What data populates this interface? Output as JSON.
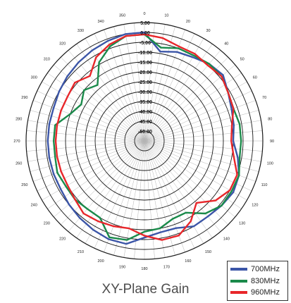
{
  "chart_data": {
    "type": "polar-line",
    "title": "XY-Plane Gain",
    "angle_ticks": [
      "0",
      "10",
      "20",
      "30",
      "40",
      "50",
      "60",
      "70",
      "80",
      "90",
      "100",
      "110",
      "120",
      "130",
      "140",
      "150",
      "160",
      "170",
      "180",
      "190",
      "200",
      "210",
      "220",
      "230",
      "240",
      "250",
      "260",
      "270",
      "280",
      "290",
      "300",
      "310",
      "320",
      "330",
      "340",
      "350"
    ],
    "radial_ticks": [
      "5.00",
      "0.00",
      "-5.00",
      "-10.00",
      "-15.00",
      "-20.00",
      "-25.00",
      "-30.00",
      "-35.00",
      "-40.00",
      "-45.00",
      "-50.00"
    ],
    "rlim": [
      -55,
      5
    ],
    "grid": true,
    "legend_position": "bottom-right",
    "angles": [
      0,
      10,
      20,
      30,
      40,
      50,
      60,
      70,
      80,
      90,
      100,
      110,
      120,
      130,
      140,
      150,
      160,
      170,
      180,
      190,
      200,
      210,
      220,
      230,
      240,
      250,
      260,
      270,
      280,
      290,
      300,
      310,
      320,
      330,
      340,
      350
    ],
    "series": [
      {
        "name": "700MHz",
        "color": "#3b55a7",
        "values": [
          0,
          -9,
          -7,
          -6,
          -4,
          -3,
          -6,
          -8,
          -9,
          -10,
          -7,
          -4,
          -3,
          -4,
          -5,
          -5,
          -8,
          -8,
          -6,
          -2,
          -2,
          -3,
          -4,
          -5,
          -6,
          -6,
          -6,
          -6,
          -6,
          -6,
          -5,
          -4,
          -3,
          -2,
          -1,
          0
        ]
      },
      {
        "name": "830MHz",
        "color": "#1a8a4a",
        "values": [
          -1,
          -7,
          -5,
          -5,
          -4,
          -4,
          -6,
          -7,
          -6,
          -6,
          -6,
          -4,
          -4,
          -4,
          -7,
          -13,
          -13,
          -10,
          -9,
          -4,
          -3,
          -10,
          -10,
          -9,
          -9,
          -8,
          -9,
          -9,
          -9,
          -15,
          -18,
          -15,
          -18,
          -9,
          -4,
          -1
        ]
      },
      {
        "name": "960MHz",
        "color": "#e8262a",
        "values": [
          -1,
          -2,
          -4,
          -4,
          -5,
          -4,
          -6,
          -7,
          -10,
          -11,
          -9,
          -5,
          -5,
          -8,
          -14,
          -8,
          -4,
          -4,
          -7,
          -10,
          -9,
          -8,
          -7,
          -9,
          -10,
          -10,
          -10,
          -10,
          -10,
          -10,
          -10,
          -9,
          -12,
          -6,
          -3,
          -1
        ]
      }
    ]
  }
}
